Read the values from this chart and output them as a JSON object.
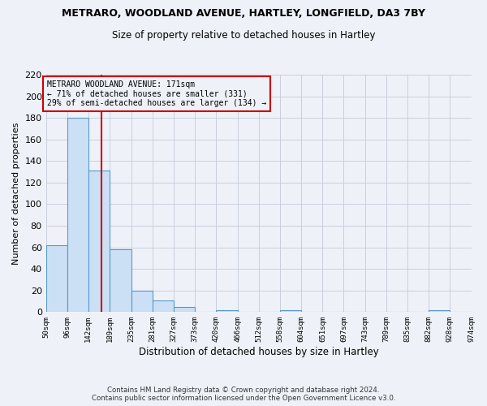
{
  "title1": "METRARO, WOODLAND AVENUE, HARTLEY, LONGFIELD, DA3 7BY",
  "title2": "Size of property relative to detached houses in Hartley",
  "xlabel": "Distribution of detached houses by size in Hartley",
  "ylabel": "Number of detached properties",
  "footer1": "Contains HM Land Registry data © Crown copyright and database right 2024.",
  "footer2": "Contains public sector information licensed under the Open Government Licence v3.0.",
  "annotation_line1": "METRARO WOODLAND AVENUE: 171sqm",
  "annotation_line2": "← 71% of detached houses are smaller (331)",
  "annotation_line3": "29% of semi-detached houses are larger (134) →",
  "property_size": 171,
  "bar_color_fill": "#cce0f5",
  "bar_color_edge": "#5599cc",
  "vline_color": "#cc0000",
  "annotation_box_edge_color": "#cc0000",
  "background_color": "#eef2f8",
  "grid_color": "#c8cfdc",
  "bins": [
    50,
    96,
    142,
    189,
    235,
    281,
    327,
    373,
    420,
    466,
    512,
    558,
    604,
    651,
    697,
    743,
    789,
    835,
    882,
    928,
    974
  ],
  "counts": [
    62,
    180,
    131,
    58,
    20,
    11,
    5,
    0,
    2,
    0,
    0,
    2,
    0,
    0,
    0,
    0,
    0,
    0,
    2,
    0
  ],
  "ylim": [
    0,
    220
  ],
  "yticks": [
    0,
    20,
    40,
    60,
    80,
    100,
    120,
    140,
    160,
    180,
    200,
    220
  ]
}
